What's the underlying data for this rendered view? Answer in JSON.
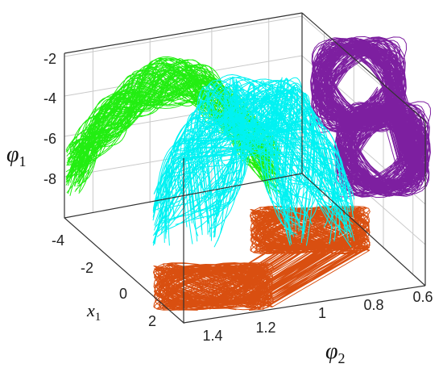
{
  "chart_data": {
    "type": "line",
    "view": "3d",
    "title": "",
    "axes": {
      "z": {
        "label": "φ",
        "label_sub": "1",
        "ticks": [
          "-2",
          "-4",
          "-6",
          "-8"
        ],
        "range": [
          -9,
          -2
        ]
      },
      "x": {
        "label": "x",
        "label_sub": "1",
        "ticks": [
          "-4",
          "-2",
          "0",
          "2"
        ],
        "range": [
          -5,
          3
        ]
      },
      "y": {
        "label": "φ",
        "label_sub": "2",
        "ticks": [
          "1.4",
          "1.2",
          "1",
          "0.8",
          "0.6"
        ],
        "range": [
          0.5,
          1.5
        ]
      }
    },
    "grid": true,
    "series": [
      {
        "projection": "x1-φ1 (back wall)",
        "color": "#22ee11"
      },
      {
        "projection": "3D trajectory",
        "color": "#00f2f2"
      },
      {
        "projection": "φ2-φ1 (side wall)",
        "color": "#7d1fa0"
      },
      {
        "projection": "x1-φ2 (floor)",
        "color": "#d94f10"
      }
    ]
  }
}
